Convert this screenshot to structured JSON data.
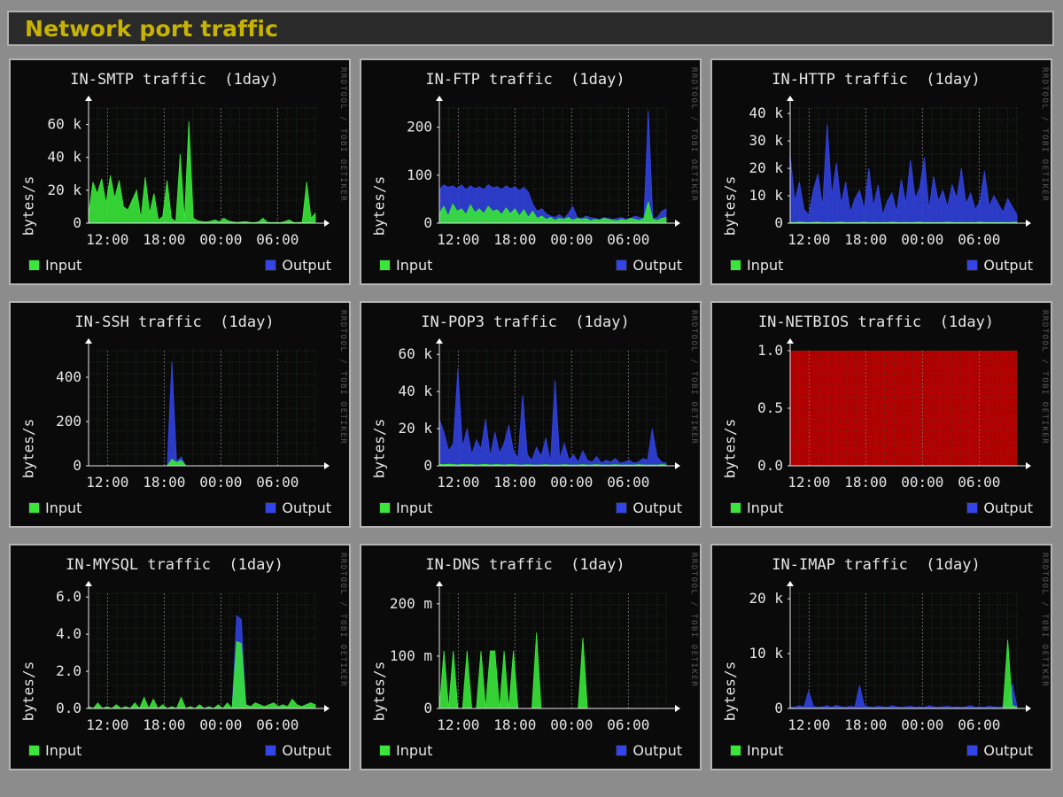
{
  "window": {
    "title": "Network port traffic"
  },
  "colors": {
    "input": "#39e639",
    "output": "#3344e8",
    "grid": "#2f5e2f",
    "vgrid": "#7a7a7a",
    "netbios_fill": "#b00000",
    "accent_title": "#c8b400"
  },
  "legend": {
    "input_label": "Input",
    "output_label": "Output"
  },
  "watermark": "RRDTOOL / TOBI OETIKER",
  "chart_data": [
    {
      "type": "area",
      "title": "IN-SMTP traffic  (1day)",
      "ylabel": "bytes/s",
      "x_ticks": [
        "12:00",
        "18:00",
        "00:00",
        "06:00"
      ],
      "y_ticks": [
        "0",
        "20 k",
        "40 k",
        "60 k"
      ],
      "ylim": [
        0,
        70000
      ],
      "series": [
        {
          "name": "Input",
          "values": [
            5000,
            25000,
            18000,
            27000,
            12000,
            29000,
            15000,
            26000,
            10000,
            8000,
            14000,
            20000,
            3000,
            28000,
            6000,
            18000,
            2000,
            4000,
            26000,
            3000,
            1000,
            42000,
            2000,
            62000,
            3000,
            1500,
            1000,
            800,
            1200,
            2000,
            800,
            3000,
            1500,
            800,
            500,
            700,
            1000,
            500,
            300,
            800,
            3000,
            600,
            400,
            500,
            300,
            1000,
            2000,
            500,
            400,
            600,
            25000,
            3000,
            6000
          ]
        },
        {
          "name": "Output",
          "values": [
            800,
            600,
            700,
            500,
            800,
            600,
            700,
            500,
            600,
            400,
            500,
            600,
            400,
            700,
            500,
            600,
            400,
            500,
            800,
            400,
            300,
            500,
            400,
            700,
            300,
            200,
            300,
            200,
            300,
            400,
            200,
            300,
            200,
            300,
            200,
            300,
            200,
            300,
            200,
            300,
            400,
            200,
            300,
            200,
            300,
            200,
            300,
            200,
            300,
            200,
            400,
            300,
            200
          ]
        }
      ]
    },
    {
      "type": "area",
      "title": "IN-FTP traffic  (1day)",
      "ylabel": "bytes/s",
      "x_ticks": [
        "12:00",
        "18:00",
        "00:00",
        "06:00"
      ],
      "y_ticks": [
        "0",
        "100",
        "200"
      ],
      "ylim": [
        0,
        240
      ],
      "series": [
        {
          "name": "Input",
          "values": [
            20,
            35,
            15,
            40,
            25,
            30,
            18,
            38,
            22,
            30,
            20,
            35,
            25,
            28,
            18,
            32,
            20,
            30,
            15,
            28,
            12,
            25,
            10,
            15,
            8,
            12,
            6,
            10,
            8,
            12,
            6,
            10,
            8,
            10,
            5,
            8,
            6,
            10,
            8,
            6,
            5,
            8,
            6,
            10,
            8,
            6,
            10,
            45,
            8,
            6,
            10,
            12
          ]
        },
        {
          "name": "Output",
          "values": [
            70,
            80,
            75,
            78,
            72,
            80,
            70,
            78,
            72,
            76,
            70,
            80,
            74,
            76,
            70,
            78,
            72,
            76,
            68,
            75,
            65,
            40,
            25,
            30,
            20,
            15,
            12,
            18,
            10,
            20,
            35,
            12,
            10,
            15,
            12,
            10,
            8,
            12,
            10,
            8,
            10,
            12,
            8,
            10,
            15,
            12,
            10,
            235,
            10,
            12,
            25,
            30
          ]
        }
      ]
    },
    {
      "type": "area",
      "title": "IN-HTTP traffic  (1day)",
      "ylabel": "bytes/s",
      "x_ticks": [
        "12:00",
        "18:00",
        "00:00",
        "06:00"
      ],
      "y_ticks": [
        "0",
        "10 k",
        "20 k",
        "30 k",
        "40 k"
      ],
      "ylim": [
        0,
        42000
      ],
      "series": [
        {
          "name": "Input",
          "values": [
            300,
            200,
            400,
            300,
            200,
            300,
            400,
            200,
            300,
            200,
            300,
            400,
            200,
            300,
            200,
            300,
            400,
            200,
            300,
            200,
            300,
            200,
            400,
            300,
            200,
            300,
            200,
            300,
            400,
            200,
            300,
            200,
            300,
            200,
            400,
            300,
            200,
            300,
            200,
            300,
            200,
            400,
            300,
            200,
            300,
            200,
            300,
            200,
            300,
            400
          ]
        },
        {
          "name": "Output",
          "values": [
            25000,
            8000,
            15000,
            5000,
            3000,
            12000,
            18000,
            6000,
            36000,
            10000,
            22000,
            7000,
            15000,
            4000,
            9000,
            12000,
            5000,
            20000,
            6000,
            14000,
            3000,
            8000,
            11000,
            4000,
            16000,
            7000,
            23000,
            9000,
            13000,
            24000,
            5000,
            17000,
            8000,
            12000,
            6000,
            14000,
            9000,
            20000,
            7000,
            11000,
            5000,
            8000,
            19000,
            6000,
            10000,
            7000,
            4000,
            9000,
            6000,
            3000
          ]
        }
      ]
    },
    {
      "type": "area",
      "title": "IN-SSH traffic  (1day)",
      "ylabel": "bytes/s",
      "x_ticks": [
        "12:00",
        "18:00",
        "00:00",
        "06:00"
      ],
      "y_ticks": [
        "0",
        "200",
        "400"
      ],
      "ylim": [
        0,
        520
      ],
      "series": [
        {
          "name": "Input",
          "values": [
            0,
            0,
            0,
            0,
            0,
            0,
            0,
            0,
            0,
            0,
            0,
            0,
            0,
            0,
            0,
            0,
            0,
            0,
            30,
            15,
            25,
            0,
            0,
            0,
            0,
            0,
            0,
            0,
            0,
            0,
            0,
            0,
            0,
            0,
            0,
            0,
            0,
            0,
            0,
            0,
            0,
            0,
            0,
            0,
            0,
            0,
            0,
            0,
            0,
            0
          ]
        },
        {
          "name": "Output",
          "values": [
            0,
            0,
            0,
            0,
            0,
            0,
            0,
            0,
            0,
            0,
            0,
            0,
            0,
            0,
            0,
            0,
            0,
            0,
            470,
            20,
            40,
            0,
            0,
            0,
            0,
            0,
            0,
            0,
            0,
            0,
            0,
            0,
            0,
            0,
            0,
            0,
            0,
            0,
            0,
            0,
            0,
            0,
            0,
            0,
            0,
            0,
            0,
            0,
            0,
            0
          ]
        }
      ]
    },
    {
      "type": "area",
      "title": "IN-POP3 traffic  (1day)",
      "ylabel": "bytes/s",
      "x_ticks": [
        "12:00",
        "18:00",
        "00:00",
        "06:00"
      ],
      "y_ticks": [
        "0",
        "20 k",
        "40 k",
        "60 k"
      ],
      "ylim": [
        0,
        62000
      ],
      "series": [
        {
          "name": "Input",
          "values": [
            800,
            600,
            900,
            700,
            500,
            800,
            600,
            700,
            500,
            600,
            800,
            500,
            700,
            600,
            500,
            700,
            600,
            500,
            400,
            600,
            500,
            400,
            500,
            600,
            400,
            500,
            400,
            600,
            500,
            400,
            500,
            600,
            400,
            500,
            600,
            400,
            500,
            400,
            600,
            500,
            400,
            500,
            400,
            600,
            500,
            400,
            500,
            400,
            600,
            500
          ]
        },
        {
          "name": "Output",
          "values": [
            25000,
            18000,
            8000,
            12000,
            52000,
            10000,
            20000,
            6000,
            14000,
            9000,
            25000,
            5000,
            18000,
            7000,
            12000,
            22000,
            8000,
            4000,
            38000,
            6000,
            3000,
            10000,
            5000,
            15000,
            2000,
            46000,
            4000,
            12000,
            3000,
            6000,
            2000,
            8000,
            3000,
            2000,
            5000,
            1500,
            3000,
            2000,
            4000,
            1500,
            2000,
            3000,
            1500,
            2000,
            4000,
            3000,
            20000,
            5000,
            2000,
            1500
          ]
        }
      ]
    },
    {
      "type": "area",
      "title": "IN-NETBIOS traffic  (1day)",
      "ylabel": "bytes/s",
      "x_ticks": [
        "12:00",
        "18:00",
        "00:00",
        "06:00"
      ],
      "y_ticks": [
        "0.0",
        "0.5",
        "1.0"
      ],
      "ylim": [
        0,
        1.0
      ],
      "series": []
    },
    {
      "type": "area",
      "title": "IN-MYSQL traffic  (1day)",
      "ylabel": "bytes/s",
      "x_ticks": [
        "12:00",
        "18:00",
        "00:00",
        "06:00"
      ],
      "y_ticks": [
        "0.0",
        "2.0",
        "4.0",
        "6.0"
      ],
      "ylim": [
        0,
        6.2
      ],
      "series": [
        {
          "name": "Input",
          "values": [
            0.1,
            0,
            0.3,
            0,
            0.1,
            0,
            0.2,
            0,
            0.1,
            0,
            0.3,
            0,
            0.6,
            0,
            0.5,
            0,
            0.2,
            0,
            0.1,
            0,
            0.6,
            0,
            0.1,
            0,
            0.2,
            0,
            0.1,
            0,
            0.2,
            0,
            0.3,
            0,
            3.6,
            3.5,
            0.2,
            0.1,
            0.3,
            0.2,
            0.1,
            0.2,
            0.3,
            0.1,
            0.2,
            0.1,
            0.5,
            0.2,
            0.1,
            0.2,
            0.3,
            0.2
          ]
        },
        {
          "name": "Output",
          "values": [
            0,
            0,
            0,
            0,
            0,
            0,
            0,
            0,
            0,
            0,
            0,
            0,
            0,
            0,
            0,
            0,
            0,
            0,
            0,
            0,
            0,
            0,
            0,
            0,
            0,
            0,
            0,
            0,
            0,
            0,
            0,
            0,
            5.0,
            4.8,
            0,
            0,
            0,
            0,
            0,
            0,
            0,
            0,
            0,
            0,
            0,
            0,
            0,
            0,
            0,
            0
          ]
        }
      ]
    },
    {
      "type": "area",
      "title": "IN-DNS traffic  (1day)",
      "ylabel": "bytes/s",
      "x_ticks": [
        "12:00",
        "18:00",
        "00:00",
        "06:00"
      ],
      "y_ticks": [
        "0",
        "100 m",
        "200 m"
      ],
      "ylim": [
        0,
        0.22
      ],
      "series": [
        {
          "name": "Input",
          "values": [
            0,
            0.11,
            0,
            0.11,
            0,
            0,
            0.11,
            0,
            0,
            0.11,
            0,
            0.11,
            0.11,
            0,
            0.11,
            0,
            0.11,
            0,
            0,
            0,
            0,
            0.145,
            0,
            0,
            0,
            0,
            0,
            0,
            0,
            0,
            0,
            0.135,
            0,
            0,
            0,
            0,
            0,
            0,
            0,
            0,
            0,
            0,
            0,
            0,
            0,
            0,
            0,
            0,
            0,
            0
          ]
        },
        {
          "name": "Output",
          "values": [
            0,
            0,
            0,
            0,
            0,
            0,
            0,
            0,
            0,
            0,
            0,
            0,
            0,
            0,
            0,
            0,
            0,
            0,
            0,
            0,
            0,
            0,
            0,
            0,
            0,
            0,
            0,
            0,
            0,
            0,
            0,
            0,
            0,
            0,
            0,
            0,
            0,
            0,
            0,
            0,
            0,
            0,
            0,
            0,
            0,
            0,
            0,
            0,
            0,
            0
          ]
        }
      ]
    },
    {
      "type": "area",
      "title": "IN-IMAP traffic  (1day)",
      "ylabel": "bytes/s",
      "x_ticks": [
        "12:00",
        "18:00",
        "00:00",
        "06:00"
      ],
      "y_ticks": [
        "0",
        "10 k",
        "20 k"
      ],
      "ylim": [
        0,
        21000
      ],
      "series": [
        {
          "name": "Input",
          "values": [
            0,
            0,
            0,
            0,
            0,
            0,
            0,
            0,
            0,
            0,
            0,
            0,
            0,
            0,
            0,
            0,
            0,
            0,
            0,
            0,
            0,
            0,
            0,
            0,
            0,
            0,
            0,
            0,
            0,
            0,
            0,
            0,
            0,
            0,
            0,
            0,
            0,
            0,
            0,
            0,
            0,
            0,
            0,
            0,
            0,
            0,
            0,
            12500,
            600,
            200
          ]
        },
        {
          "name": "Output",
          "values": [
            300,
            200,
            500,
            300,
            3200,
            400,
            200,
            300,
            500,
            200,
            600,
            300,
            200,
            400,
            300,
            4200,
            500,
            300,
            200,
            400,
            300,
            200,
            500,
            300,
            200,
            300,
            400,
            200,
            300,
            200,
            500,
            300,
            200,
            300,
            400,
            200,
            300,
            200,
            300,
            500,
            200,
            300,
            200,
            400,
            300,
            200,
            300,
            1200,
            4500,
            300
          ]
        }
      ]
    }
  ]
}
